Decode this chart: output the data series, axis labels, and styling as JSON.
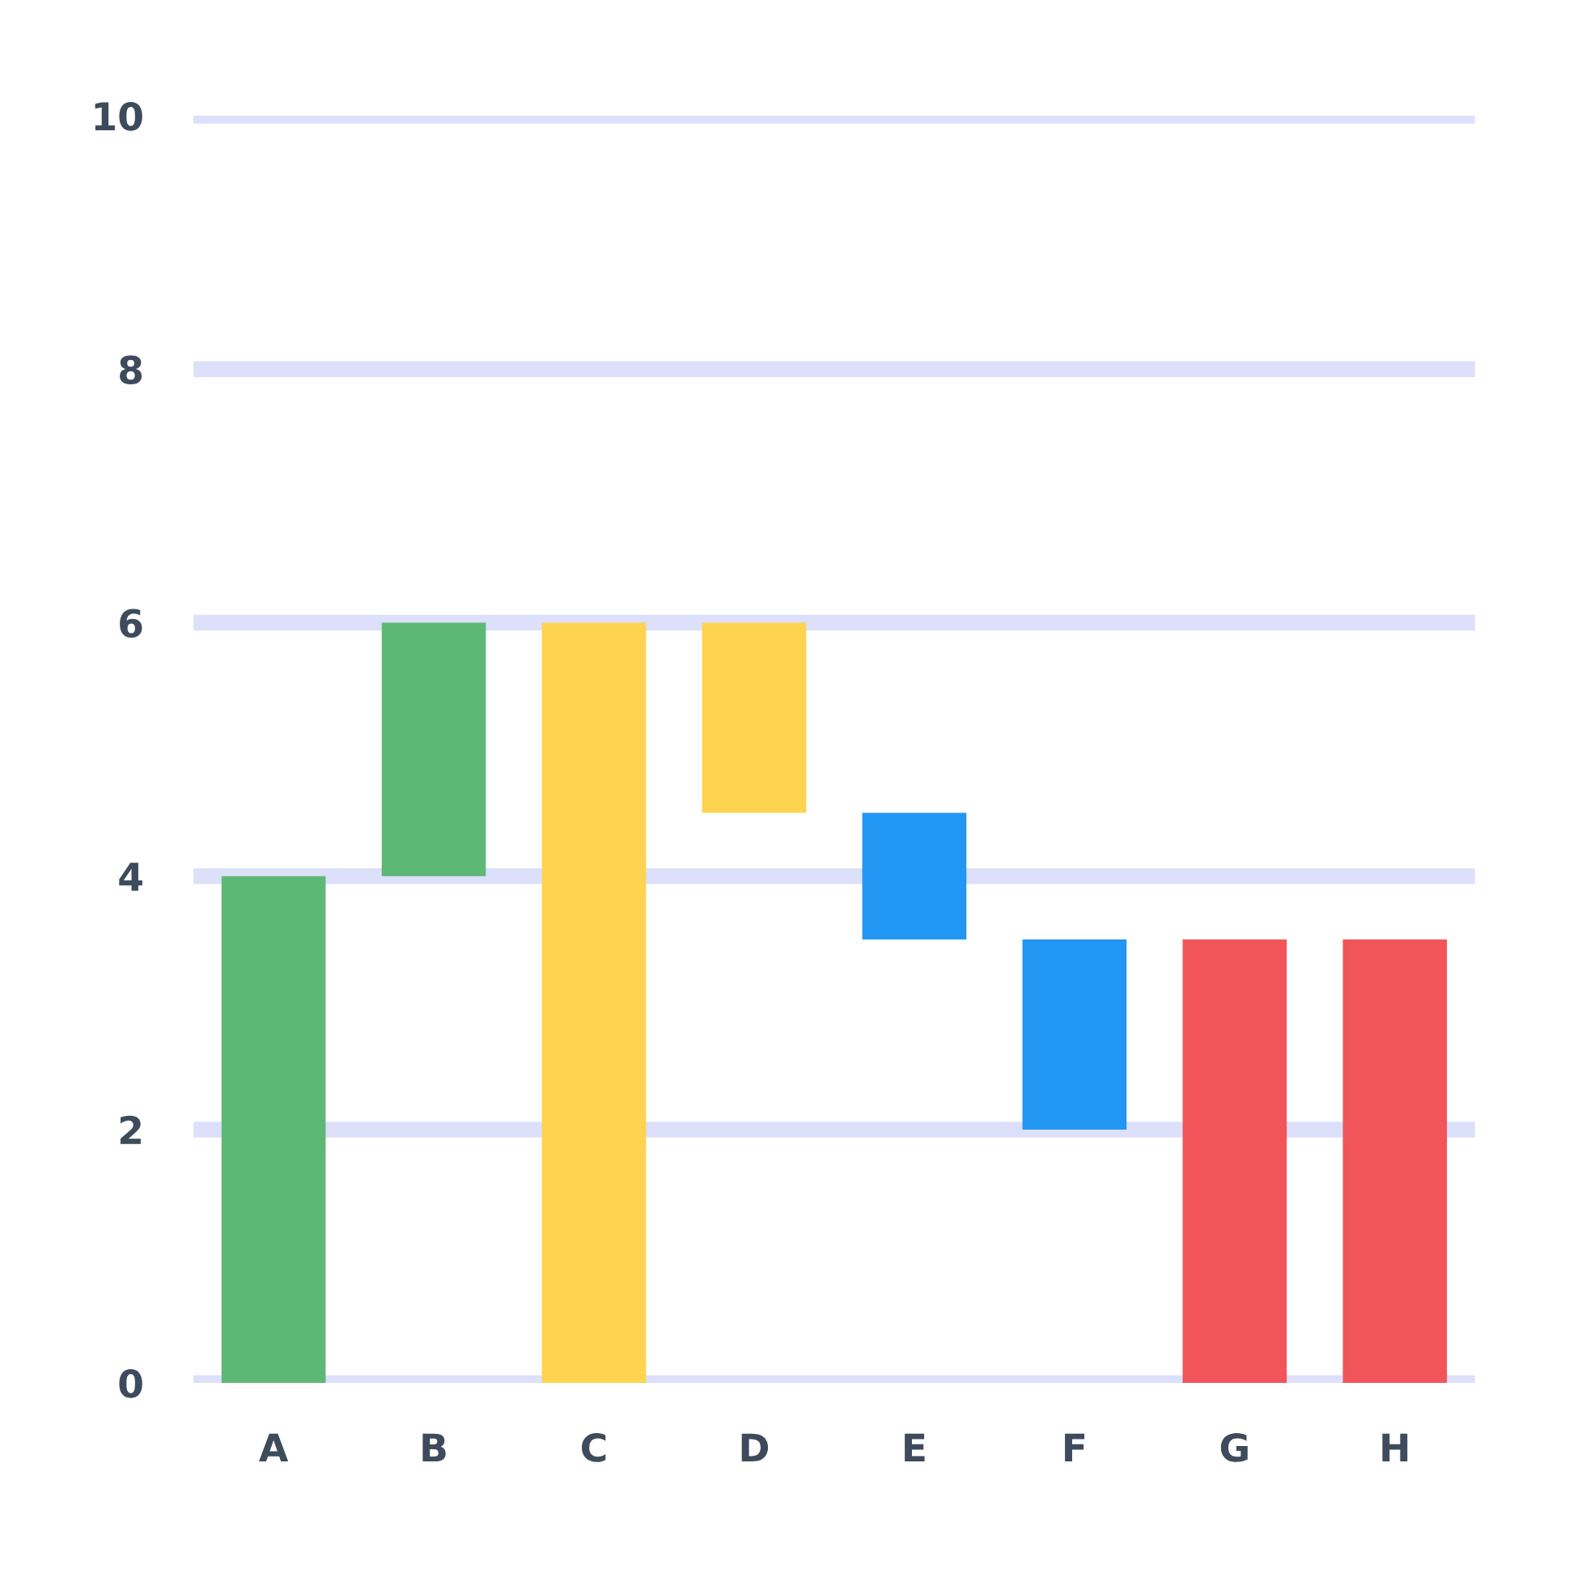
{
  "chart_data": {
    "type": "bar",
    "categories": [
      "A",
      "B",
      "C",
      "D",
      "E",
      "F",
      "G",
      "H"
    ],
    "values": [
      4,
      2,
      6,
      1.5,
      1,
      1.5,
      3.5,
      3.5
    ],
    "base": [
      0,
      4,
      0,
      4.5,
      3.5,
      2,
      0,
      0
    ],
    "colors": [
      "#5db876",
      "#5db876",
      "#fdd34f",
      "#fdd34f",
      "#2196f3",
      "#2196f3",
      "#f25559",
      "#f25559"
    ],
    "ylim": [
      0,
      10
    ],
    "yticks": [
      0,
      2,
      4,
      6,
      8,
      10
    ],
    "grid": "y"
  }
}
